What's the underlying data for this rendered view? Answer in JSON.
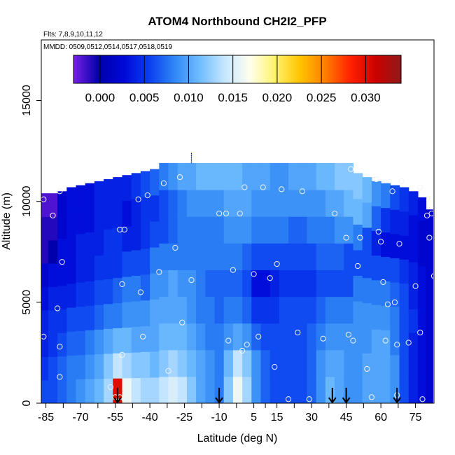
{
  "chart_data": {
    "type": "heatmap",
    "title": "ATOM4 Northbound CH2I2_PFP",
    "subtitle_flights": "Flts: 7,8,9,10,11,12",
    "subtitle_dates": "MMDD: 0509,0512,0514,0517,0518,0519",
    "xlabel": "Latitude (deg N)",
    "ylabel": "Altitude (m)",
    "xlim": [
      -87,
      83
    ],
    "ylim": [
      0,
      18000
    ],
    "x_ticks": [
      -85,
      -70,
      -55,
      -40,
      -25,
      -10,
      5,
      15,
      30,
      45,
      60,
      75
    ],
    "x_tick_labels": [
      "-85",
      "-70",
      "-55",
      "-40",
      "-25",
      "-10",
      "5",
      "15",
      "30",
      "45",
      "60",
      "75"
    ],
    "y_ticks": [
      0,
      5000,
      10000,
      15000
    ],
    "y_tick_labels": [
      "0",
      "5000",
      "10000",
      "15000"
    ],
    "colorbar": {
      "range": [
        -0.003,
        0.034
      ],
      "ticks": [
        0.0,
        0.005,
        0.01,
        0.015,
        0.02,
        0.025,
        0.03
      ],
      "tick_labels": [
        "0.000",
        "0.005",
        "0.010",
        "0.015",
        "0.020",
        "0.025",
        "0.030"
      ],
      "colors": [
        "#7a1fe6",
        "#0000aa",
        "#0008d8",
        "#0a3ef0",
        "#2f86f6",
        "#6ebcff",
        "#c6e6ff",
        "#ffffee",
        "#fff36b",
        "#ffc300",
        "#ff7d00",
        "#ff2000",
        "#cc0000",
        "#8e1a1a"
      ]
    },
    "columns": [
      {
        "lat": -86,
        "top": 10400,
        "values": [
          0.006,
          0.005,
          0.004,
          0.004,
          0.003,
          0.002,
          -0.001,
          -0.001,
          -0.002
        ]
      },
      {
        "lat": -82,
        "top": 10400,
        "values": [
          0.006,
          0.006,
          0.005,
          0.005,
          0.004,
          0.003,
          0.0,
          -0.001,
          -0.002
        ]
      },
      {
        "lat": -78,
        "top": 10500,
        "values": [
          0.007,
          0.007,
          0.006,
          0.005,
          0.004,
          0.003,
          0.003,
          0.002,
          0.002
        ]
      },
      {
        "lat": -74,
        "top": 10700,
        "values": [
          0.008,
          0.008,
          0.007,
          0.006,
          0.004,
          0.003,
          0.003,
          0.003,
          0.003
        ]
      },
      {
        "lat": -70,
        "top": 10800,
        "values": [
          0.009,
          0.008,
          0.007,
          0.006,
          0.005,
          0.004,
          0.004,
          0.003,
          0.003
        ]
      },
      {
        "lat": -66,
        "top": 10900,
        "values": [
          0.01,
          0.009,
          0.008,
          0.006,
          0.005,
          0.004,
          0.004,
          0.003,
          0.003
        ]
      },
      {
        "lat": -62,
        "top": 11000,
        "values": [
          0.011,
          0.01,
          0.009,
          0.007,
          0.006,
          0.005,
          0.004,
          0.004,
          0.004
        ]
      },
      {
        "lat": -58,
        "top": 11100,
        "values": [
          0.013,
          0.012,
          0.01,
          0.008,
          0.006,
          0.005,
          0.005,
          0.004,
          0.004
        ]
      },
      {
        "lat": -54,
        "top": 11200,
        "values": [
          0.03,
          0.014,
          0.011,
          0.008,
          0.007,
          0.005,
          0.005,
          0.004,
          0.004
        ]
      },
      {
        "lat": -50,
        "top": 11300,
        "values": [
          0.016,
          0.013,
          0.011,
          0.009,
          0.008,
          0.006,
          0.004,
          0.003,
          0.004
        ]
      },
      {
        "lat": -46,
        "top": 11400,
        "values": [
          0.014,
          0.012,
          0.01,
          0.009,
          0.008,
          0.006,
          0.004,
          0.004,
          0.005
        ]
      },
      {
        "lat": -42,
        "top": 11500,
        "values": [
          0.013,
          0.012,
          0.01,
          0.009,
          0.007,
          0.006,
          0.005,
          0.005,
          0.006
        ]
      },
      {
        "lat": -38,
        "top": 11600,
        "values": [
          0.013,
          0.011,
          0.01,
          0.01,
          0.009,
          0.008,
          0.006,
          0.005,
          0.007
        ]
      },
      {
        "lat": -34,
        "top": 11900,
        "values": [
          0.014,
          0.012,
          0.011,
          0.01,
          0.009,
          0.008,
          0.006,
          0.006,
          0.008
        ]
      },
      {
        "lat": -30,
        "top": 11900,
        "values": [
          0.015,
          0.013,
          0.011,
          0.01,
          0.01,
          0.008,
          0.007,
          0.007,
          0.009
        ]
      },
      {
        "lat": -26,
        "top": 11900,
        "values": [
          0.014,
          0.012,
          0.011,
          0.01,
          0.009,
          0.008,
          0.008,
          0.008,
          0.01
        ]
      },
      {
        "lat": -22,
        "top": 11900,
        "values": [
          0.012,
          0.011,
          0.01,
          0.009,
          0.009,
          0.008,
          0.008,
          0.009,
          0.01
        ]
      },
      {
        "lat": -18,
        "top": 11900,
        "values": [
          0.01,
          0.01,
          0.009,
          0.008,
          0.008,
          0.008,
          0.008,
          0.009,
          0.011
        ]
      },
      {
        "lat": -14,
        "top": 11900,
        "values": [
          0.009,
          0.009,
          0.008,
          0.008,
          0.007,
          0.008,
          0.008,
          0.009,
          0.011
        ]
      },
      {
        "lat": -10,
        "top": 11900,
        "values": [
          0.008,
          0.008,
          0.008,
          0.007,
          0.007,
          0.008,
          0.008,
          0.009,
          0.011
        ]
      },
      {
        "lat": -6,
        "top": 11900,
        "values": [
          0.012,
          0.011,
          0.009,
          0.008,
          0.007,
          0.008,
          0.009,
          0.01,
          0.011
        ]
      },
      {
        "lat": -2,
        "top": 11900,
        "values": [
          0.016,
          0.014,
          0.01,
          0.008,
          0.007,
          0.008,
          0.009,
          0.01,
          0.011
        ]
      },
      {
        "lat": 2,
        "top": 11900,
        "values": [
          0.013,
          0.012,
          0.009,
          0.007,
          0.006,
          0.007,
          0.009,
          0.01,
          0.01
        ]
      },
      {
        "lat": 6,
        "top": 11900,
        "values": [
          0.009,
          0.009,
          0.007,
          0.005,
          0.003,
          0.006,
          0.008,
          0.009,
          0.01
        ]
      },
      {
        "lat": 10,
        "top": 11900,
        "values": [
          0.007,
          0.007,
          0.006,
          0.005,
          0.003,
          0.006,
          0.008,
          0.009,
          0.01
        ]
      },
      {
        "lat": 14,
        "top": 11900,
        "values": [
          0.006,
          0.006,
          0.006,
          0.005,
          0.004,
          0.006,
          0.008,
          0.009,
          0.009
        ]
      },
      {
        "lat": 18,
        "top": 11900,
        "values": [
          0.006,
          0.006,
          0.006,
          0.006,
          0.005,
          0.006,
          0.008,
          0.009,
          0.009
        ]
      },
      {
        "lat": 22,
        "top": 11900,
        "values": [
          0.006,
          0.006,
          0.006,
          0.006,
          0.005,
          0.006,
          0.007,
          0.009,
          0.01
        ]
      },
      {
        "lat": 26,
        "top": 11900,
        "values": [
          0.006,
          0.006,
          0.006,
          0.006,
          0.005,
          0.006,
          0.007,
          0.009,
          0.01
        ]
      },
      {
        "lat": 30,
        "top": 11900,
        "values": [
          0.007,
          0.007,
          0.007,
          0.006,
          0.005,
          0.006,
          0.008,
          0.009,
          0.01
        ]
      },
      {
        "lat": 34,
        "top": 11900,
        "values": [
          0.009,
          0.009,
          0.008,
          0.007,
          0.006,
          0.007,
          0.008,
          0.009,
          0.011
        ]
      },
      {
        "lat": 38,
        "top": 11900,
        "values": [
          0.011,
          0.01,
          0.009,
          0.008,
          0.006,
          0.007,
          0.008,
          0.01,
          0.011
        ]
      },
      {
        "lat": 42,
        "top": 11900,
        "values": [
          0.01,
          0.01,
          0.009,
          0.008,
          0.006,
          0.007,
          0.009,
          0.01,
          0.012
        ]
      },
      {
        "lat": 46,
        "top": 11900,
        "values": [
          0.009,
          0.009,
          0.009,
          0.008,
          0.006,
          0.006,
          0.009,
          0.011,
          0.012
        ]
      },
      {
        "lat": 50,
        "top": 11400,
        "values": [
          0.009,
          0.009,
          0.009,
          0.009,
          0.008,
          0.006,
          0.008,
          0.011,
          0.012
        ]
      },
      {
        "lat": 54,
        "top": 11200,
        "values": [
          0.01,
          0.01,
          0.009,
          0.009,
          0.008,
          0.006,
          0.006,
          0.01,
          0.011
        ]
      },
      {
        "lat": 58,
        "top": 11000,
        "values": [
          0.01,
          0.01,
          0.01,
          0.009,
          0.008,
          0.006,
          0.004,
          0.007,
          0.009
        ]
      },
      {
        "lat": 62,
        "top": 10900,
        "values": [
          0.01,
          0.01,
          0.01,
          0.009,
          0.008,
          0.006,
          0.003,
          0.005,
          0.008
        ]
      },
      {
        "lat": 66,
        "top": 10800,
        "values": [
          0.009,
          0.009,
          0.008,
          0.008,
          0.007,
          0.006,
          0.003,
          0.004,
          0.006
        ]
      },
      {
        "lat": 70,
        "top": 10700,
        "values": [
          0.006,
          0.006,
          0.006,
          0.006,
          0.006,
          0.005,
          0.003,
          0.004,
          0.005
        ]
      },
      {
        "lat": 74,
        "top": 10500,
        "values": [
          0.004,
          0.004,
          0.004,
          0.005,
          0.004,
          0.004,
          0.003,
          0.003,
          0.004
        ]
      },
      {
        "lat": 78,
        "top": 10200,
        "values": [
          0.003,
          0.003,
          0.003,
          0.003,
          0.003,
          0.003,
          0.002,
          0.002,
          0.003
        ]
      },
      {
        "lat": 81,
        "top": 9600,
        "values": [
          0.002,
          0.002,
          0.002,
          0.002,
          0.002,
          0.002,
          0.002,
          0.002,
          0.002
        ]
      }
    ],
    "samples": [
      [
        -86,
        10100
      ],
      [
        -82,
        9300
      ],
      [
        -79,
        10500
      ],
      [
        -78,
        7000
      ],
      [
        -80,
        4700
      ],
      [
        -79,
        2800
      ],
      [
        -79,
        1300
      ],
      [
        -86,
        3300
      ],
      [
        -55,
        300
      ],
      [
        -57,
        800
      ],
      [
        -53,
        8600
      ],
      [
        -51,
        8600
      ],
      [
        -52,
        5900
      ],
      [
        -52,
        2400
      ],
      [
        -53,
        300
      ],
      [
        -51,
        200
      ],
      [
        -45,
        10100
      ],
      [
        -41,
        10300
      ],
      [
        -44,
        5500
      ],
      [
        -43,
        3300
      ],
      [
        -36,
        6500
      ],
      [
        -34,
        10900
      ],
      [
        -32,
        1600
      ],
      [
        -29,
        7700
      ],
      [
        -27,
        11200
      ],
      [
        -26,
        4000
      ],
      [
        -22,
        6100
      ],
      [
        -10,
        9400
      ],
      [
        -7,
        9400
      ],
      [
        -6,
        3100
      ],
      [
        -4,
        6600
      ],
      [
        -1,
        9400
      ],
      [
        0,
        2600
      ],
      [
        1,
        10700
      ],
      [
        2,
        2900
      ],
      [
        5,
        6400
      ],
      [
        7,
        3300
      ],
      [
        9,
        10700
      ],
      [
        12,
        6200
      ],
      [
        14,
        1800
      ],
      [
        15,
        6900
      ],
      [
        17,
        10600
      ],
      [
        20,
        200
      ],
      [
        24,
        3500
      ],
      [
        26,
        10500
      ],
      [
        29,
        200
      ],
      [
        35,
        3200
      ],
      [
        40,
        9400
      ],
      [
        45,
        8200
      ],
      [
        47,
        11600
      ],
      [
        46,
        3400
      ],
      [
        48,
        3100
      ],
      [
        50,
        6800
      ],
      [
        51,
        8200
      ],
      [
        54,
        1700
      ],
      [
        56,
        300
      ],
      [
        58,
        11100
      ],
      [
        59,
        8500
      ],
      [
        60,
        8000
      ],
      [
        62,
        3100
      ],
      [
        61,
        6000
      ],
      [
        63,
        4900
      ],
      [
        66,
        5000
      ],
      [
        67,
        2900
      ],
      [
        67,
        400
      ],
      [
        65,
        10500
      ],
      [
        68,
        7900
      ],
      [
        69,
        11000
      ],
      [
        72,
        3000
      ],
      [
        75,
        5800
      ],
      [
        77,
        10700
      ],
      [
        77,
        3500
      ],
      [
        80,
        9300
      ],
      [
        81,
        8200
      ],
      [
        78,
        200
      ],
      [
        82,
        9400
      ],
      [
        83,
        6300
      ]
    ],
    "flight_markers_lat": [
      -54,
      -10,
      39,
      45,
      67
    ],
    "vertical_marker": {
      "lat": -22,
      "alt_from": 11900,
      "alt_to": 12400
    }
  }
}
